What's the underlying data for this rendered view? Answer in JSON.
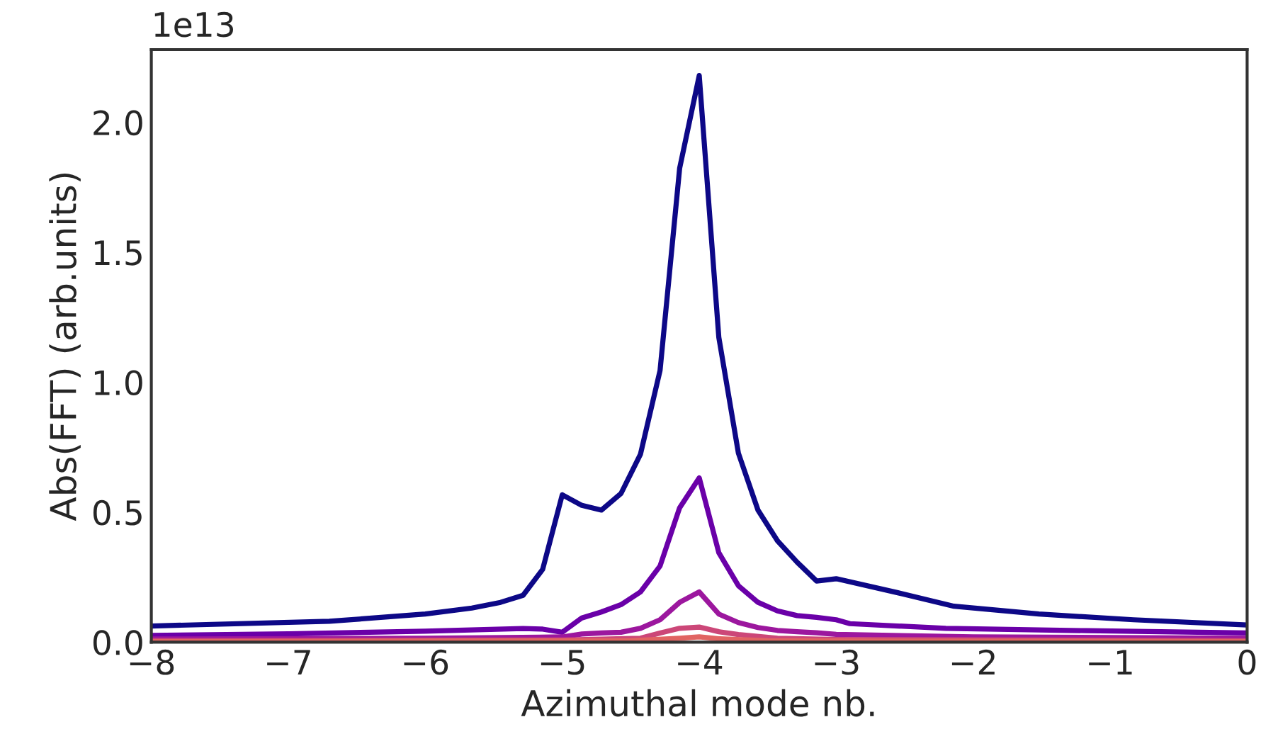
{
  "chart_data": {
    "type": "line",
    "xlabel": "Azimuthal mode nb.",
    "ylabel": "Abs(FFT) (arb.units)",
    "annotations": [
      "1e13"
    ],
    "xlim": [
      -8,
      0
    ],
    "ylim": [
      0,
      2.28
    ],
    "xticks": [
      {
        "value": -8,
        "label": "−8"
      },
      {
        "value": -7,
        "label": "−7"
      },
      {
        "value": -6,
        "label": "−6"
      },
      {
        "value": -5,
        "label": "−5"
      },
      {
        "value": -4,
        "label": "−4"
      },
      {
        "value": -3,
        "label": "−3"
      },
      {
        "value": -2,
        "label": "−2"
      },
      {
        "value": -1,
        "label": "−1"
      },
      {
        "value": 0,
        "label": "0"
      }
    ],
    "yticks": [
      {
        "value": 0,
        "label": "0.0"
      },
      0.5,
      {
        "value": 1,
        "label": "1.0"
      },
      1.5,
      {
        "value": 2,
        "label": "2.0"
      }
    ],
    "grid": false,
    "marker": "none",
    "line_style": "solid",
    "series": [
      {
        "color": "#0d0887",
        "x": [
          -8,
          -6.7,
          -6,
          -5.66,
          -5.45,
          -5.286,
          -5.143,
          -5,
          -4.857,
          -4.714,
          -4.571,
          -4.429,
          -4.286,
          -4.143,
          -4,
          -3.857,
          -3.714,
          -3.571,
          -3.429,
          -3.286,
          -3.143,
          -3,
          -2.55,
          -2.14,
          -1.52,
          -0.83,
          0
        ],
        "values": [
          0.062,
          0.08,
          0.108,
          0.131,
          0.153,
          0.18,
          0.28,
          0.567,
          0.526,
          0.508,
          0.572,
          0.723,
          1.045,
          1.823,
          2.18,
          1.173,
          0.727,
          0.508,
          0.39,
          0.308,
          0.235,
          0.244,
          0.19,
          0.138,
          0.108,
          0.086,
          0.066
        ]
      },
      {
        "color": "#6a00a8",
        "x": [
          -8,
          -7,
          -6,
          -5.286,
          -5.143,
          -5,
          -4.857,
          -4.714,
          -4.571,
          -4.429,
          -4.286,
          -4.143,
          -4,
          -3.857,
          -3.714,
          -3.571,
          -3.429,
          -3.286,
          -3.143,
          -3,
          -2.9,
          -2.2,
          -1.17,
          0
        ],
        "values": [
          0.026,
          0.032,
          0.042,
          0.052,
          0.05,
          0.038,
          0.093,
          0.116,
          0.144,
          0.193,
          0.293,
          0.517,
          0.632,
          0.344,
          0.217,
          0.153,
          0.12,
          0.102,
          0.095,
          0.086,
          0.071,
          0.053,
          0.044,
          0.035
        ]
      },
      {
        "color": "#9c179e",
        "x": [
          -8,
          -6,
          -5,
          -4.857,
          -4.714,
          -4.571,
          -4.429,
          -4.286,
          -4.143,
          -4,
          -3.857,
          -3.714,
          -3.571,
          -3.429,
          -3.286,
          -3.143,
          -3,
          -2,
          0
        ],
        "values": [
          0.012,
          0.015,
          0.02,
          0.031,
          0.035,
          0.038,
          0.053,
          0.086,
          0.153,
          0.193,
          0.108,
          0.075,
          0.056,
          0.045,
          0.04,
          0.036,
          0.03,
          0.02,
          0.015
        ]
      },
      {
        "color": "#cc4778",
        "x": [
          -8,
          -5,
          -4.429,
          -4.286,
          -4.143,
          -4,
          -3.857,
          -3.714,
          -3.429,
          -3,
          0
        ],
        "values": [
          0.005,
          0.008,
          0.015,
          0.035,
          0.053,
          0.058,
          0.04,
          0.029,
          0.015,
          0.01,
          0.005
        ]
      },
      {
        "color": "#e16462",
        "x": [
          -8,
          -4.5,
          -4.143,
          -4,
          -3.857,
          -3.5,
          0
        ],
        "values": [
          0.002,
          0.005,
          0.015,
          0.02,
          0.013,
          0.005,
          0.002
        ]
      }
    ]
  }
}
